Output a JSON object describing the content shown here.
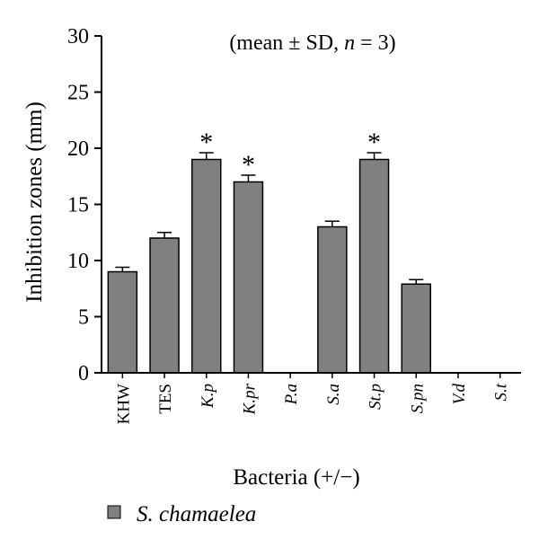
{
  "chart_data": {
    "type": "bar",
    "title": "",
    "annotation": "(mean ± SD, n = 3)",
    "annotation_parts": {
      "before": "(mean ± SD, ",
      "n": "n",
      "after": " = 3)"
    },
    "xlabel": "Bacteria (+/−)",
    "ylabel": "Inhibition zones (mm)",
    "ylim": [
      0,
      30
    ],
    "yticks": [
      0,
      5,
      10,
      15,
      20,
      25,
      30
    ],
    "grid": false,
    "legend_position": "bottom-left",
    "categories": [
      "KHW",
      "TES",
      "K.p",
      "K.pr",
      "P.a",
      "S.a",
      "St.p",
      "S.pn",
      "V.d",
      "S.t"
    ],
    "category_italic": [
      false,
      false,
      true,
      true,
      true,
      true,
      true,
      true,
      true,
      true
    ],
    "series": [
      {
        "name": "S. chamaelea",
        "color": "#808080",
        "values": [
          9.0,
          12.0,
          19.0,
          17.0,
          0,
          13.0,
          19.0,
          7.9,
          0,
          0
        ],
        "sd": [
          0.4,
          0.5,
          0.6,
          0.6,
          0,
          0.5,
          0.6,
          0.4,
          0,
          0
        ],
        "significant": [
          false,
          false,
          true,
          true,
          false,
          false,
          true,
          false,
          false,
          false
        ]
      }
    ],
    "significance_marker": "*"
  }
}
